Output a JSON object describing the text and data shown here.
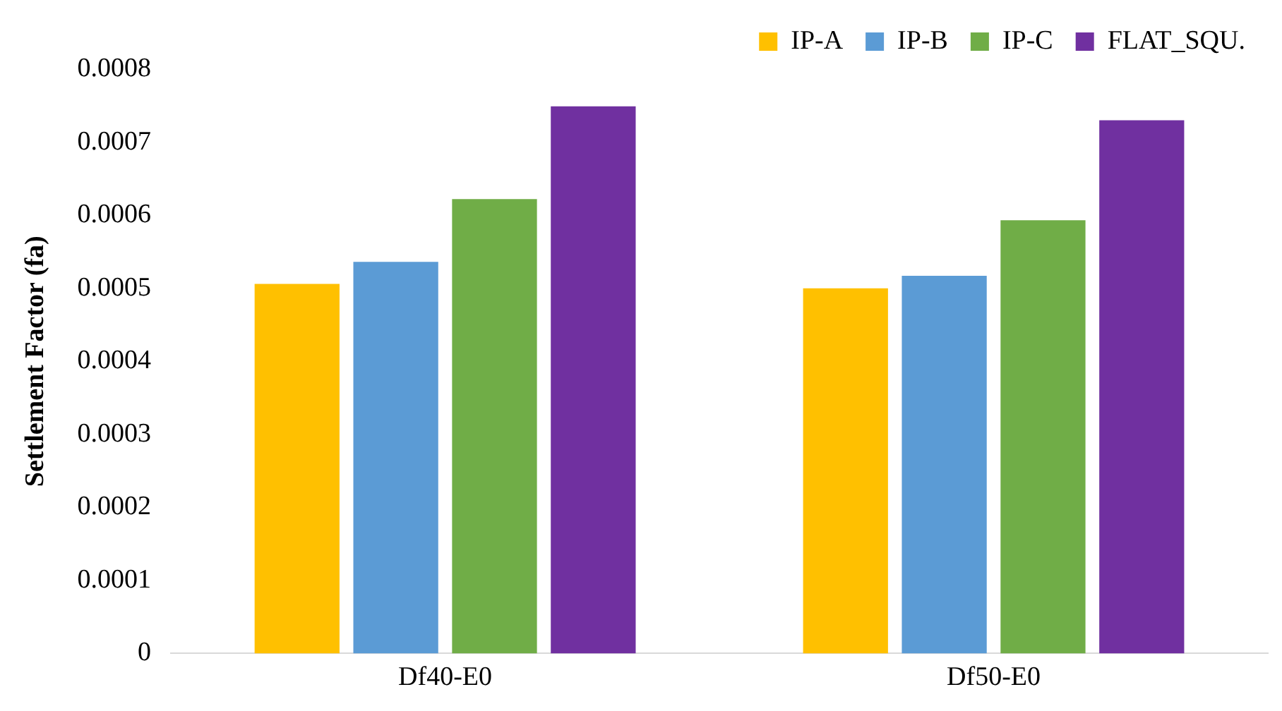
{
  "chart_data": {
    "type": "bar",
    "ylabel": "Settlement Factor (fa)",
    "categories": [
      "Df40-E0",
      "Df50-E0"
    ],
    "series": [
      {
        "name": "IP-A",
        "color": "#ffc000",
        "values": [
          0.000506,
          0.0005
        ]
      },
      {
        "name": "IP-B",
        "color": "#5b9bd5",
        "values": [
          0.000536,
          0.000517
        ]
      },
      {
        "name": "IP-C",
        "color": "#70ad47",
        "values": [
          0.000622,
          0.000593
        ]
      },
      {
        "name": "FLAT_SQU.",
        "color": "#7030a0",
        "values": [
          0.000749,
          0.00073
        ]
      }
    ],
    "ylim": [
      0,
      0.0008
    ],
    "yticks": [
      0,
      0.0001,
      0.0002,
      0.0003,
      0.0004,
      0.0005,
      0.0006,
      0.0007,
      0.0008
    ],
    "grid": false,
    "legend": "top right"
  }
}
